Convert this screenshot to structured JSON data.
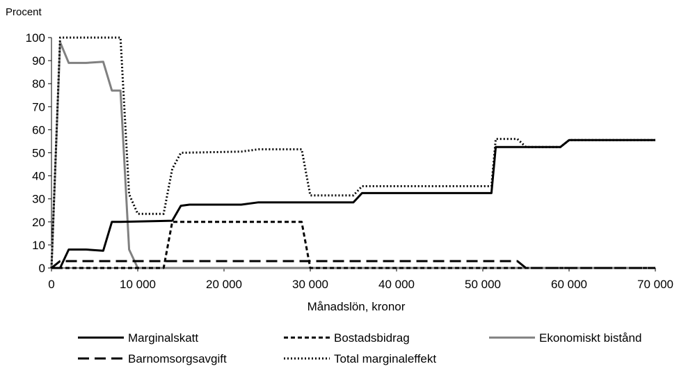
{
  "chart_data": {
    "type": "line",
    "title": "",
    "ylabel": "Procent",
    "xlabel": "Månadslön, kronor",
    "xlim": [
      0,
      70000
    ],
    "ylim": [
      0,
      100
    ],
    "x_ticks": [
      0,
      10000,
      20000,
      30000,
      40000,
      50000,
      60000,
      70000
    ],
    "x_tick_labels": [
      "0",
      "10 000",
      "20 000",
      "30 000",
      "40 000",
      "50 000",
      "60 000",
      "70 000"
    ],
    "y_ticks": [
      0,
      10,
      20,
      30,
      40,
      50,
      60,
      70,
      80,
      90,
      100
    ],
    "y_tick_labels": [
      "0",
      "10",
      "20",
      "30",
      "40",
      "50",
      "60",
      "70",
      "80",
      "90",
      "100"
    ],
    "grid": false,
    "legend_position": "bottom",
    "series": [
      {
        "name": "Marginalskatt",
        "color": "#000000",
        "dash": "solid",
        "points": [
          [
            0,
            0
          ],
          [
            1000,
            0
          ],
          [
            2000,
            8
          ],
          [
            4000,
            8
          ],
          [
            6000,
            7.5
          ],
          [
            7000,
            20
          ],
          [
            8000,
            20
          ],
          [
            14000,
            20.5
          ],
          [
            15000,
            27
          ],
          [
            16000,
            27.5
          ],
          [
            22000,
            27.5
          ],
          [
            24000,
            28.5
          ],
          [
            35000,
            28.5
          ],
          [
            36000,
            32.5
          ],
          [
            51000,
            32.5
          ],
          [
            51500,
            52.5
          ],
          [
            59000,
            52.5
          ],
          [
            60000,
            55.5
          ],
          [
            70000,
            55.5
          ]
        ]
      },
      {
        "name": "Bostadsbidrag",
        "color": "#000000",
        "dash": "short",
        "points": [
          [
            0,
            0
          ],
          [
            13000,
            0
          ],
          [
            14000,
            20
          ],
          [
            29000,
            20
          ],
          [
            30000,
            0
          ],
          [
            70000,
            0
          ]
        ]
      },
      {
        "name": "Ekonomiskt bistånd",
        "color": "#808080",
        "dash": "solid",
        "points": [
          [
            0,
            0
          ],
          [
            1000,
            98
          ],
          [
            2000,
            89
          ],
          [
            4000,
            89
          ],
          [
            6000,
            89.5
          ],
          [
            7000,
            77
          ],
          [
            8000,
            77
          ],
          [
            9000,
            8
          ],
          [
            10000,
            0
          ],
          [
            70000,
            0
          ]
        ]
      },
      {
        "name": "Barnomsorgsavgift",
        "color": "#000000",
        "dash": "long",
        "points": [
          [
            0,
            0
          ],
          [
            1000,
            3
          ],
          [
            54000,
            3
          ],
          [
            55000,
            0
          ],
          [
            70000,
            0
          ]
        ]
      },
      {
        "name": "Total marginaleffekt",
        "color": "#000000",
        "dash": "dotted",
        "points": [
          [
            0,
            0
          ],
          [
            1000,
            100
          ],
          [
            8000,
            100
          ],
          [
            9000,
            32
          ],
          [
            10000,
            23.5
          ],
          [
            13000,
            23.5
          ],
          [
            14000,
            43
          ],
          [
            15000,
            50
          ],
          [
            22000,
            50.5
          ],
          [
            24000,
            51.5
          ],
          [
            29000,
            51.5
          ],
          [
            30000,
            31.5
          ],
          [
            35000,
            31.5
          ],
          [
            36000,
            35.5
          ],
          [
            51000,
            35.5
          ],
          [
            51500,
            56
          ],
          [
            54000,
            56
          ],
          [
            55000,
            52.5
          ],
          [
            59000,
            52.5
          ],
          [
            60000,
            55.5
          ],
          [
            70000,
            55.5
          ]
        ]
      }
    ]
  }
}
